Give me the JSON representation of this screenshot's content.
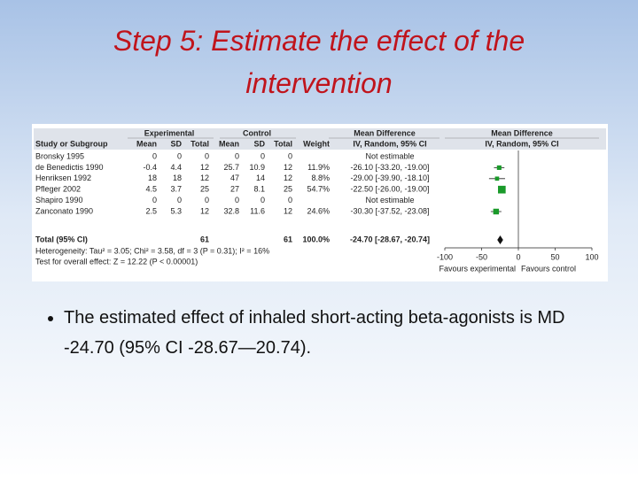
{
  "title": "Step 5: Estimate the effect of the intervention",
  "forest": {
    "group_headers": [
      "Experimental",
      "Control",
      "Mean Difference",
      "Mean Difference"
    ],
    "columns": [
      "Study or Subgroup",
      "Mean",
      "SD",
      "Total",
      "Mean",
      "SD",
      "Total",
      "Weight",
      "IV, Random, 95% CI",
      "IV, Random, 95% CI"
    ],
    "studies": [
      "Bronsky 1995",
      "de Benedictis 1990",
      "Henriksen 1992",
      "Pfleger 2002",
      "Shapiro 1990",
      "Zanconato 1990"
    ],
    "cells": [
      [
        "0",
        "0",
        "0",
        "0",
        "0",
        "0"
      ],
      [
        "-0.4",
        "4.4",
        "12",
        "25.7",
        "10.9",
        "12"
      ],
      [
        "18",
        "18",
        "12",
        "47",
        "14",
        "12"
      ],
      [
        "4.5",
        "3.7",
        "25",
        "27",
        "8.1",
        "25"
      ],
      [
        "0",
        "0",
        "0",
        "0",
        "0",
        "0"
      ],
      [
        "2.5",
        "5.3",
        "12",
        "32.8",
        "11.6",
        "12"
      ]
    ],
    "weights": [
      null,
      11.9,
      8.8,
      54.7,
      null,
      24.6
    ],
    "weight_labels": [
      null,
      "11.9%",
      "8.8%",
      "54.7%",
      null,
      "24.6%"
    ],
    "values": [
      null,
      -26.1,
      -29.0,
      -22.5,
      null,
      -30.3
    ],
    "lower": [
      null,
      -33.2,
      -39.9,
      -26.0,
      null,
      -37.52
    ],
    "upper": [
      null,
      -19.0,
      -18.1,
      -19.0,
      null,
      -23.08
    ],
    "value_labels": [
      "Not estimable",
      "-26.10 [-33.20, -19.00]",
      "-29.00 [-39.90, -18.10]",
      "-22.50 [-26.00, -19.00]",
      "Not estimable",
      "-30.30 [-37.52, -23.08]"
    ],
    "total": {
      "label": "Total (95% CI)",
      "exp_total": "61",
      "ctrl_total": "61",
      "weight": "100.0%",
      "value": -24.7,
      "lower": -28.67,
      "upper": -20.74,
      "value_label": "-24.70 [-28.67, -20.74]"
    },
    "heterogeneity": "Heterogeneity: Tau² = 3.05; Chi² = 3.58, df = 3 (P = 0.31); I² = 16%",
    "overall_effect": "Test for overall effect: Z = 12.22 (P < 0.00001)",
    "xlim": [
      -100,
      100
    ],
    "xticks": [
      -100,
      -50,
      0,
      50,
      100
    ],
    "favours": [
      "Favours experimental",
      "Favours control"
    ]
  },
  "bullet": "The estimated effect of inhaled short-acting beta-agonists is MD -24.70 (95% CI -28.67—20.74)."
}
